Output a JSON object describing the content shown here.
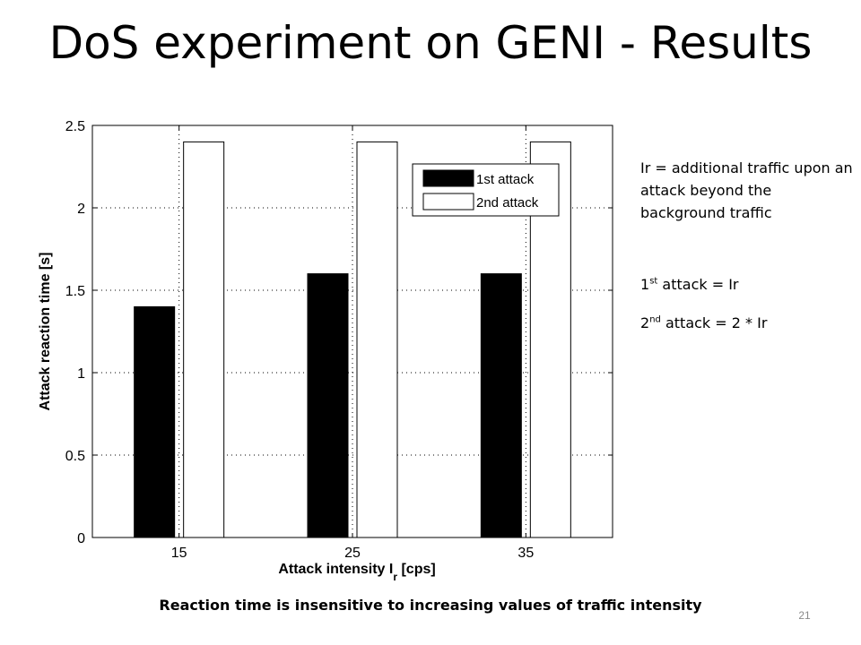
{
  "slide": {
    "title": "DoS experiment on GENI - Results",
    "caption": "Reaction time is insensitive to increasing values of traffic intensity",
    "page_number": "21"
  },
  "notes": {
    "definition": "Ir = additional traffic upon an attack beyond the background traffic",
    "first_ord": "1",
    "first_sup": "st",
    "first_rest": " attack = Ir",
    "second_ord": "2",
    "second_sup": "nd",
    "second_rest": " attack = 2 * Ir"
  },
  "chart_data": {
    "type": "bar",
    "categories": [
      "15",
      "25",
      "35"
    ],
    "series": [
      {
        "name": "1st attack",
        "values": [
          1.4,
          1.6,
          1.6
        ],
        "color": "#000000"
      },
      {
        "name": "2nd attack",
        "values": [
          2.4,
          2.4,
          2.4
        ],
        "color": "#ffffff"
      }
    ],
    "xlabel_main": "Attack intensity I",
    "xlabel_sub": "r",
    "xlabel_unit": " [cps]",
    "ylabel": "Attack reaction time [s]",
    "ylim": [
      0,
      2.5
    ],
    "yticks": [
      "0",
      "0.5",
      "1",
      "1.5",
      "2",
      "2.5"
    ],
    "ytick_values": [
      0,
      0.5,
      1,
      1.5,
      2,
      2.5
    ],
    "grid": true,
    "legend_position": "top-right"
  }
}
